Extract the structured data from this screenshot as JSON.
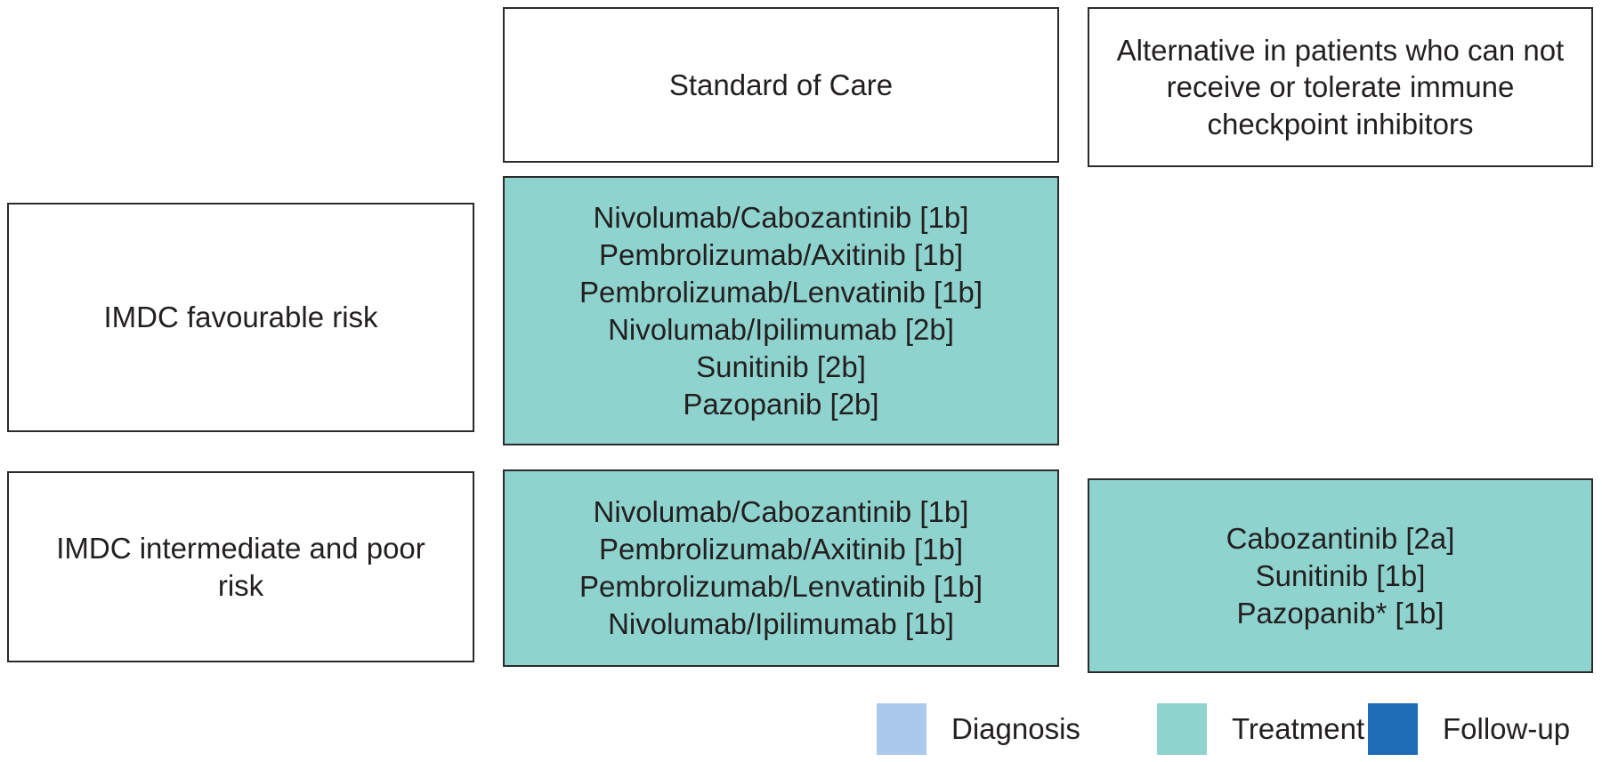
{
  "headers": {
    "standard": "Standard of Care",
    "alternative": "Alternative in patients who can not receive or tolerate immune checkpoint inhibitors"
  },
  "rows": [
    {
      "risk": "IMDC favourable risk",
      "standard": [
        "Nivolumab/Cabozantinib [1b]",
        "Pembrolizumab/Axitinib [1b]",
        "Pembrolizumab/Lenvatinib [1b]",
        "Nivolumab/Ipilimumab [2b]",
        "Sunitinib [2b]",
        "Pazopanib [2b]"
      ],
      "alternative": []
    },
    {
      "risk": "IMDC intermediate and poor risk",
      "standard": [
        "Nivolumab/Cabozantinib [1b]",
        "Pembrolizumab/Axitinib [1b]",
        "Pembrolizumab/Lenvatinib [1b]",
        "Nivolumab/Ipilimumab [1b]"
      ],
      "alternative": [
        "Cabozantinib [2a]",
        "Sunitinib [1b]",
        "Pazopanib* [1b]"
      ]
    }
  ],
  "legend": [
    {
      "label": "Diagnosis",
      "color": "#abc9ec"
    },
    {
      "label": "Treatment",
      "color": "#8ed3cd"
    },
    {
      "label": "Follow-up",
      "color": "#1d6cb5"
    }
  ],
  "colors": {
    "treatment_fill": "#8ed3cd",
    "diagnosis_fill": "#abc9ec",
    "followup_fill": "#1d6cb5",
    "border": "#2d2a2b",
    "text": "#231f20"
  }
}
